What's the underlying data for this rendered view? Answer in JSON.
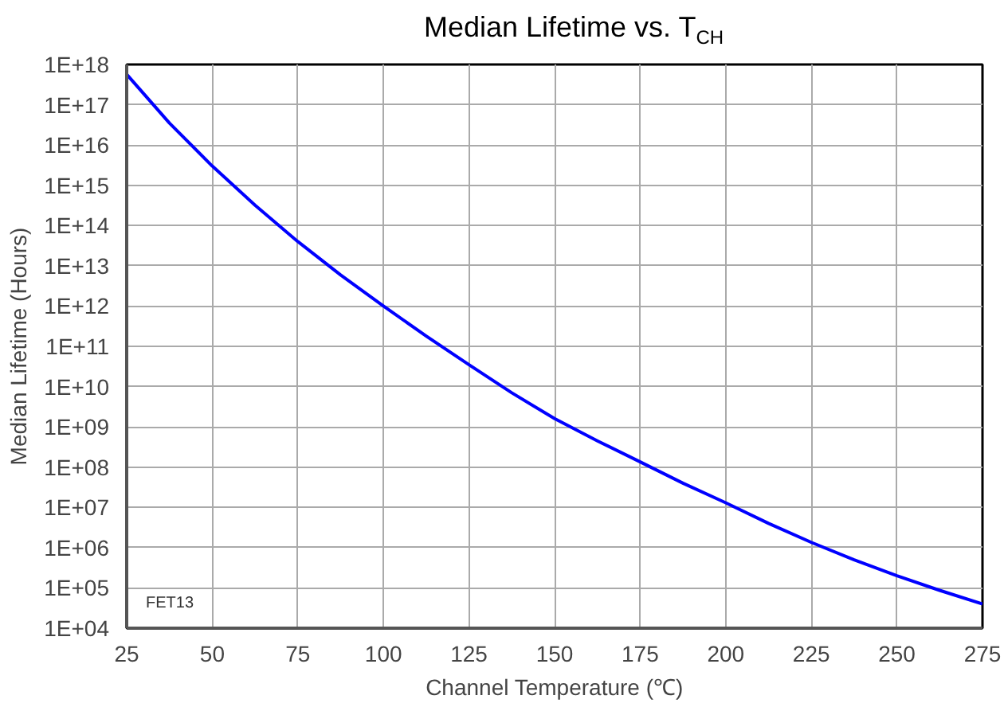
{
  "chart_data": {
    "type": "line",
    "title": "Median Lifetime vs. T$_{CH}$",
    "xlabel": "Channel Temperature (℃)",
    "ylabel": "Median Lifetime (Hours)",
    "annotations": [
      "FET13"
    ],
    "x": [
      25,
      37.5,
      50,
      62.5,
      75,
      87.5,
      100,
      112.5,
      125,
      137.5,
      150,
      162.5,
      175,
      187.5,
      200,
      212.5,
      225,
      237.5,
      250,
      262.5,
      275
    ],
    "series": [
      {
        "color": "#0000ff",
        "values": [
          5.7e+17,
          3.5e+16,
          3000000000000000.0,
          320000000000000.0,
          40000000000000.0,
          5900000000000.0,
          1000000000000.0,
          180000000000.0,
          35000000000.0,
          7000000000.0,
          1600000000.0,
          450000000.0,
          135000000.0,
          40000000.0,
          13000000.0,
          4000000.0,
          1350000.0,
          500000.0,
          200000.0,
          87000.0,
          40000.0
        ]
      }
    ],
    "xlim": [
      25,
      275
    ],
    "xticks": [
      25,
      50,
      75,
      100,
      125,
      150,
      175,
      200,
      225,
      250,
      275
    ],
    "ylim": [
      10000.0,
      1e+18
    ],
    "log": true,
    "yticks": [
      {
        "value": 10000.0,
        "label": "1E+04"
      },
      {
        "value": 100000.0,
        "label": "1E+05"
      },
      {
        "value": 1000000.0,
        "label": "1E+06"
      },
      {
        "value": 10000000.0,
        "label": "1E+07"
      },
      {
        "value": 100000000.0,
        "label": "1E+08"
      },
      {
        "value": 1000000000.0,
        "label": "1E+09"
      },
      {
        "value": 10000000000.0,
        "label": "1E+10"
      },
      {
        "value": 100000000000.0,
        "label": "1E+11"
      },
      {
        "value": 1000000000000.0,
        "label": "1E+12"
      },
      {
        "value": 10000000000000.0,
        "label": "1E+13"
      },
      {
        "value": 100000000000000.0,
        "label": "1E+14"
      },
      {
        "value": 1000000000000000.0,
        "label": "1E+15"
      },
      {
        "value": 1e+16,
        "label": "1E+16"
      },
      {
        "value": 1e+17,
        "label": "1E+17"
      },
      {
        "value": 1e+18,
        "label": "1E+18"
      }
    ],
    "grid": true,
    "marker": "none",
    "line_style": "solid"
  }
}
